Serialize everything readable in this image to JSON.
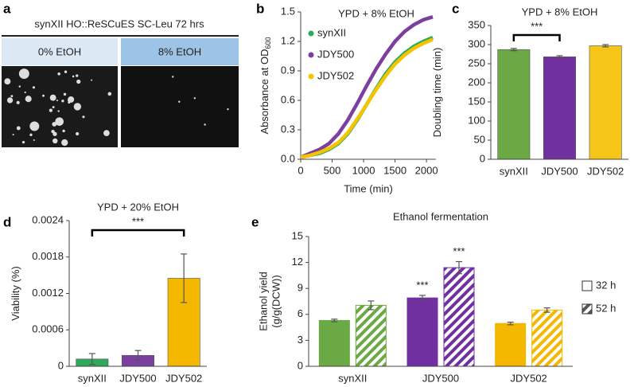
{
  "image_panel": {
    "panel": "a",
    "title": "synXII HO::ReSCuES SC-Leu 72 hrs",
    "conditions": [
      "0% EtOH",
      "8% EtOH"
    ]
  },
  "chart_data": [
    {
      "type": "line",
      "panel": "b",
      "title": "YPD + 8% EtOH",
      "xlabel": "Time (min)",
      "ylabel": "Absorbance at OD",
      "ylabel_sub": "600",
      "x": [
        0,
        150,
        300,
        450,
        600,
        750,
        900,
        1050,
        1200,
        1350,
        1500,
        1650,
        1800,
        1950,
        2100
      ],
      "series": [
        {
          "name": "synXII",
          "color": "#2eaa5c",
          "values": [
            0.02,
            0.04,
            0.06,
            0.1,
            0.16,
            0.26,
            0.4,
            0.56,
            0.72,
            0.87,
            0.99,
            1.08,
            1.15,
            1.2,
            1.24
          ]
        },
        {
          "name": "JDY500",
          "color": "#7b3fa0",
          "values": [
            0.02,
            0.06,
            0.1,
            0.16,
            0.26,
            0.4,
            0.57,
            0.75,
            0.92,
            1.07,
            1.2,
            1.3,
            1.37,
            1.42,
            1.45
          ]
        },
        {
          "name": "JDY502",
          "color": "#f5c400",
          "values": [
            0.02,
            0.04,
            0.07,
            0.11,
            0.17,
            0.27,
            0.41,
            0.56,
            0.71,
            0.85,
            0.97,
            1.06,
            1.13,
            1.18,
            1.22
          ]
        }
      ],
      "xlim": [
        0,
        2150
      ],
      "xticks": [
        0,
        500,
        1000,
        1500,
        2000
      ],
      "ylim": [
        0,
        1.5
      ],
      "yticks": [
        {
          "value": 0,
          "label": "0.0"
        },
        0.3,
        0.6,
        0.9,
        1.2,
        1.5
      ]
    },
    {
      "type": "bar",
      "panel": "c",
      "title": "YPD + 8% EtOH",
      "ylabel": "Doubling time (min)",
      "categories": [
        "synXII",
        "JDY500",
        "JDY502"
      ],
      "values": [
        287,
        268,
        297
      ],
      "errors": [
        3,
        3,
        3
      ],
      "colors": [
        "#6aa944",
        "#7030a0",
        "#f5c518"
      ],
      "ylim": [
        0,
        350
      ],
      "yticks": [
        0,
        50,
        100,
        150,
        200,
        250,
        300,
        350
      ],
      "significance": [
        {
          "text": "***",
          "between": [
            "synXII",
            "JDY500"
          ]
        }
      ]
    },
    {
      "type": "bar",
      "panel": "d",
      "title": "YPD + 20% EtOH",
      "ylabel": "Viability (%)",
      "categories": [
        "synXII",
        "JDY500",
        "JDY502"
      ],
      "values": [
        0.00012,
        0.00018,
        0.00145
      ],
      "errors": [
        9e-05,
        8e-05,
        0.0004
      ],
      "colors": [
        "#2eaa5c",
        "#7b3fa0",
        "#f5b800"
      ],
      "ylim": [
        0,
        0.0024
      ],
      "yticks": [
        0,
        0.0006,
        0.0012,
        0.0018,
        0.0024
      ],
      "significance": [
        {
          "text": "***",
          "between": [
            "synXII",
            "JDY502"
          ]
        }
      ]
    },
    {
      "type": "grouped_bar",
      "panel": "e",
      "title": "Ethanol fermentation",
      "ylabel": [
        "Ethanol yield",
        "(g/g(DCW))"
      ],
      "categories": [
        "synXII",
        "JDY500",
        "JDY502"
      ],
      "colors": [
        "#6aa944",
        "#7030a0",
        "#f5b800"
      ],
      "series": [
        {
          "name": "32 h",
          "hatched": false,
          "values": [
            5.3,
            7.9,
            4.95
          ],
          "errors": [
            0.15,
            0.3,
            0.15
          ]
        },
        {
          "name": "52 h",
          "hatched": true,
          "values": [
            7.05,
            11.4,
            6.5
          ],
          "errors": [
            0.5,
            0.7,
            0.25
          ]
        }
      ],
      "ylim": [
        0,
        15
      ],
      "yticks": [
        0,
        3,
        6,
        9,
        12,
        15
      ],
      "significance": [
        {
          "text": "***",
          "series": "32 h",
          "category": "JDY500"
        },
        {
          "text": "***",
          "series": "52 h",
          "category": "JDY500"
        }
      ]
    }
  ]
}
